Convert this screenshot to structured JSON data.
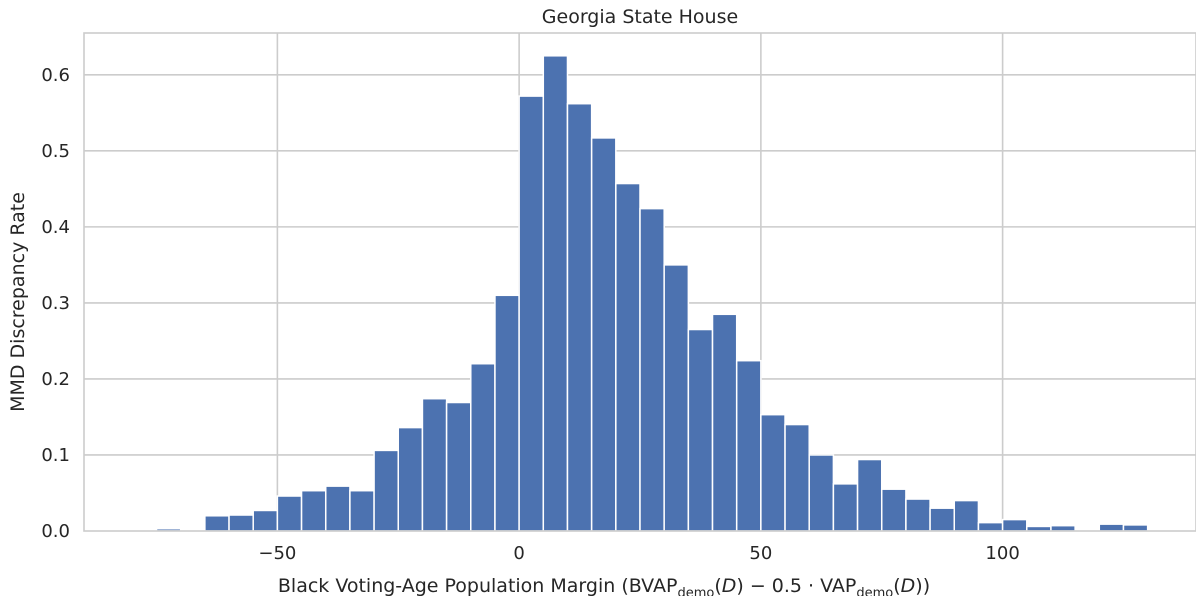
{
  "chart_data": {
    "type": "bar",
    "title": "Georgia State House",
    "xlabel": {
      "main": "Black Voting-Age Population Margin (BVAP",
      "sub1": "demo",
      "mid1": "(",
      "var1": "D",
      "mid2": ") − 0.5 · VAP",
      "sub2": "demo",
      "mid3": "(",
      "var2": "D",
      "end": "))"
    },
    "ylabel": "MMD Discrepancy Rate",
    "xlim": [
      -90,
      140
    ],
    "ylim": [
      0,
      0.655
    ],
    "xticks": [
      {
        "value": -50,
        "label": "−50"
      },
      {
        "value": 0,
        "label": "0"
      },
      {
        "value": 50,
        "label": "50"
      },
      {
        "value": 100,
        "label": "100"
      }
    ],
    "yticks": [
      {
        "value": 0.0,
        "label": "0.0"
      },
      {
        "value": 0.1,
        "label": "0.1"
      },
      {
        "value": 0.2,
        "label": "0.2"
      },
      {
        "value": 0.3,
        "label": "0.3"
      },
      {
        "value": 0.4,
        "label": "0.4"
      },
      {
        "value": 0.5,
        "label": "0.5"
      },
      {
        "value": 0.6,
        "label": "0.6"
      }
    ],
    "grid": true,
    "bar_color": "#4c72b0",
    "bin_width": 5,
    "bin_starts": [
      -75,
      -70,
      -65,
      -60,
      -55,
      -50,
      -45,
      -40,
      -35,
      -30,
      -25,
      -20,
      -15,
      -10,
      -5,
      0,
      5,
      10,
      15,
      20,
      25,
      30,
      35,
      40,
      45,
      50,
      55,
      60,
      65,
      70,
      75,
      80,
      85,
      90,
      95,
      100,
      105,
      110,
      115,
      120,
      125
    ],
    "values": [
      0.003,
      0.0,
      0.02,
      0.021,
      0.027,
      0.046,
      0.053,
      0.059,
      0.053,
      0.106,
      0.136,
      0.174,
      0.169,
      0.22,
      0.31,
      0.572,
      0.625,
      0.562,
      0.517,
      0.457,
      0.424,
      0.35,
      0.265,
      0.285,
      0.224,
      0.153,
      0.14,
      0.1,
      0.062,
      0.094,
      0.055,
      0.042,
      0.03,
      0.04,
      0.011,
      0.015,
      0.006,
      0.007,
      0.0,
      0.009,
      0.008
    ]
  }
}
